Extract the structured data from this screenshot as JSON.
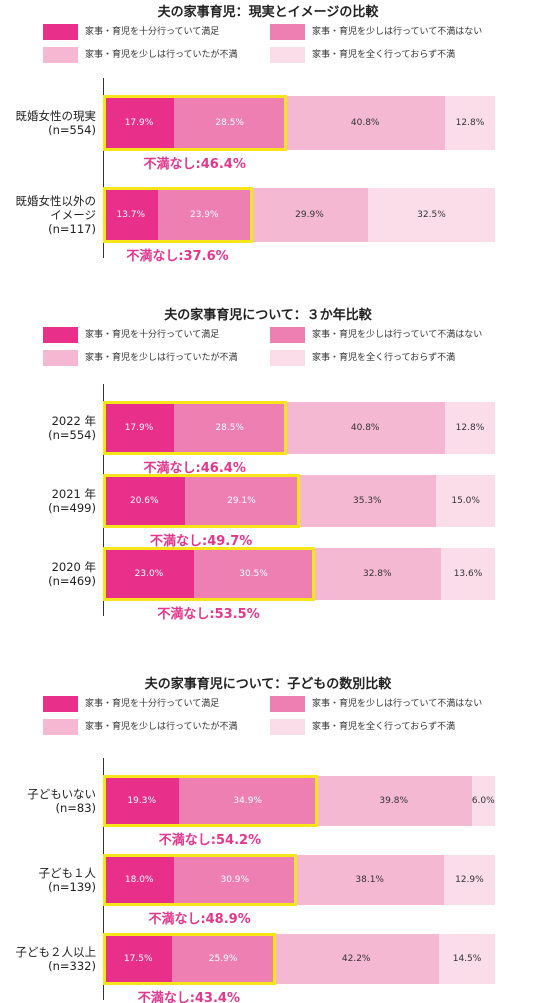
{
  "chart_data": [
    {
      "type": "bar",
      "orientation": "horizontal",
      "stacked": true,
      "title": "夫の家事育児：現実とイメージの比較",
      "categories": [
        "既婚女性の現実\n(n=554)",
        "既婚女性以外の\nイメージ\n(n=117)"
      ],
      "series": [
        {
          "name": "家事・育児を十分行っていて満足",
          "color": "#e8308a",
          "values": [
            17.9,
            13.7
          ],
          "value_labels": [
            "17.9%",
            "13.7%"
          ]
        },
        {
          "name": "家事・育児を少しは行っていて不満はない",
          "color": "#ee7fb3",
          "values": [
            28.5,
            23.9
          ],
          "value_labels": [
            "28.5%",
            "23.9%"
          ]
        },
        {
          "name": "家事・育児を少しは行っていたが不満",
          "color": "#f5b8d3",
          "values": [
            40.8,
            29.9
          ],
          "value_labels": [
            "40.8%",
            "29.9%"
          ]
        },
        {
          "name": "家事・育児を全く行っておらず不満",
          "color": "#fbdde9",
          "values": [
            12.8,
            32.5
          ],
          "value_labels": [
            "12.8%",
            "32.5%"
          ]
        }
      ],
      "xlim": [
        0,
        100
      ],
      "annotations": [
        "不満なし:46.4%",
        "不満なし:37.6%"
      ],
      "highlight_color": "#f7e51c"
    },
    {
      "type": "bar",
      "orientation": "horizontal",
      "stacked": true,
      "title": "夫の家事育児について：３か年比較",
      "categories": [
        "2022 年\n(n=554)",
        "2021 年\n(n=499)",
        "2020 年\n(n=469)"
      ],
      "series": [
        {
          "name": "家事・育児を十分行っていて満足",
          "color": "#e8308a",
          "values": [
            17.9,
            20.6,
            23.0
          ],
          "value_labels": [
            "17.9%",
            "20.6%",
            "23.0%"
          ]
        },
        {
          "name": "家事・育児を少しは行っていて不満はない",
          "color": "#ee7fb3",
          "values": [
            28.5,
            29.1,
            30.5
          ],
          "value_labels": [
            "28.5%",
            "29.1%",
            "30.5%"
          ]
        },
        {
          "name": "家事・育児を少しは行っていたが不満",
          "color": "#f5b8d3",
          "values": [
            40.8,
            35.3,
            32.8
          ],
          "value_labels": [
            "40.8%",
            "35.3%",
            "32.8%"
          ]
        },
        {
          "name": "家事・育児を全く行っておらず不満",
          "color": "#fbdde9",
          "values": [
            12.8,
            15.0,
            13.6
          ],
          "value_labels": [
            "12.8%",
            "15.0%",
            "13.6%"
          ]
        }
      ],
      "xlim": [
        0,
        100
      ],
      "annotations": [
        "不満なし:46.4%",
        "不満なし:49.7%",
        "不満なし:53.5%"
      ],
      "highlight_color": "#f7e51c"
    },
    {
      "type": "bar",
      "orientation": "horizontal",
      "stacked": true,
      "title": "夫の家事育児について：子どもの数別比較",
      "categories": [
        "子どもいない\n(n=83)",
        "子ども１人\n(n=139)",
        "子ども２人以上\n(n=332)"
      ],
      "series": [
        {
          "name": "家事・育児を十分行っていて満足",
          "color": "#e8308a",
          "values": [
            19.3,
            18.0,
            17.5
          ],
          "value_labels": [
            "19.3%",
            "18.0%",
            "17.5%"
          ]
        },
        {
          "name": "家事・育児を少しは行っていて不満はない",
          "color": "#ee7fb3",
          "values": [
            34.9,
            30.9,
            25.9
          ],
          "value_labels": [
            "34.9%",
            "30.9%",
            "25.9%"
          ]
        },
        {
          "name": "家事・育児を少しは行っていたが不満",
          "color": "#f5b8d3",
          "values": [
            39.8,
            38.1,
            42.2
          ],
          "value_labels": [
            "39.8%",
            "38.1%",
            "42.2%"
          ]
        },
        {
          "name": "家事・育児を全く行っておらず不満",
          "color": "#fbdde9",
          "values": [
            6.0,
            12.9,
            14.5
          ],
          "value_labels": [
            "6.0%",
            "12.9%",
            "14.5%"
          ]
        }
      ],
      "xlim": [
        0,
        100
      ],
      "annotations": [
        "不満なし:54.2%",
        "不満なし:48.9%",
        "不満なし:43.4%"
      ],
      "highlight_color": "#f7e51c"
    }
  ]
}
